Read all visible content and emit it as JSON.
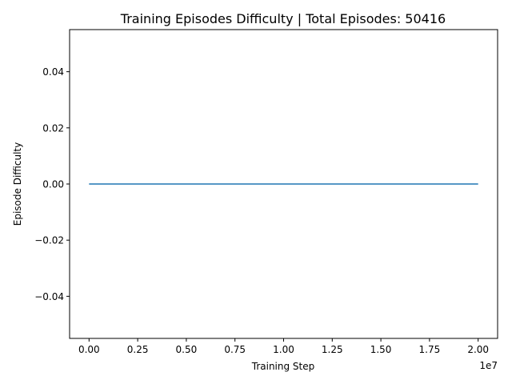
{
  "chart_data": {
    "type": "line",
    "title": "Training Episodes Difficulty | Total Episodes: 50416",
    "xlabel": "Training Step",
    "ylabel": "Episode Difficulty",
    "x_offset_label": "1e7",
    "xlim": [
      -0.1,
      2.1
    ],
    "ylim": [
      -0.055,
      0.055
    ],
    "x_ticks": [
      0.0,
      0.25,
      0.5,
      0.75,
      1.0,
      1.25,
      1.5,
      1.75,
      2.0
    ],
    "x_tick_labels": [
      "0.00",
      "0.25",
      "0.50",
      "0.75",
      "1.00",
      "1.25",
      "1.50",
      "1.75",
      "2.00"
    ],
    "y_ticks": [
      -0.04,
      -0.02,
      0.0,
      0.02,
      0.04
    ],
    "y_tick_labels": [
      "−0.04",
      "−0.02",
      "0.00",
      "0.02",
      "0.04"
    ],
    "grid": false,
    "legend": "none",
    "series": [
      {
        "color": "#1f77b4",
        "x": [
          0.0,
          2.0
        ],
        "y": [
          0.0,
          0.0
        ]
      }
    ]
  }
}
